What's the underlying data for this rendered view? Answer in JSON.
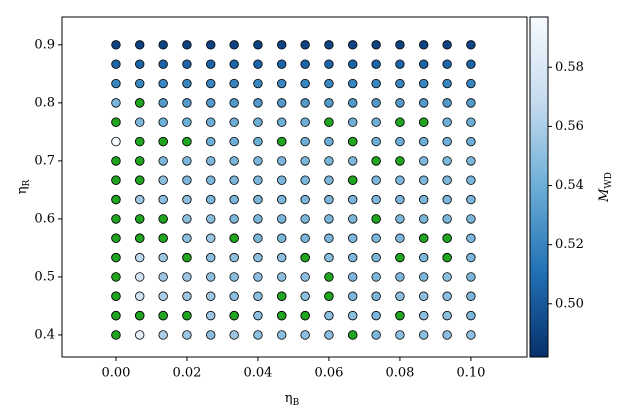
{
  "chart_data": {
    "type": "color-grid-scatter",
    "xlabel": {
      "symbol": "η",
      "sub": "B"
    },
    "ylabel": {
      "symbol": "η",
      "sub": "R"
    },
    "colorbar_label": {
      "symbol": "M",
      "sub": "WD"
    },
    "x": [
      0,
      0.0067,
      0.0133,
      0.02,
      0.0267,
      0.0333,
      0.04,
      0.0467,
      0.0533,
      0.06,
      0.0667,
      0.0733,
      0.08,
      0.0867,
      0.0933,
      0.1
    ],
    "y": [
      0.4,
      0.4333,
      0.4667,
      0.5,
      0.5333,
      0.5667,
      0.6,
      0.6333,
      0.6667,
      0.7,
      0.7333,
      0.7667,
      0.8,
      0.8333,
      0.8667,
      0.9
    ],
    "values": [
      [
        0.555,
        0.585,
        0.56,
        0.555,
        0.55,
        0.555,
        0.55,
        0.55,
        0.55,
        0.55,
        0.55,
        0.545,
        0.55,
        0.55,
        0.55,
        0.55
      ],
      [
        0.55,
        0.555,
        0.56,
        0.555,
        0.555,
        0.55,
        0.55,
        0.555,
        0.55,
        0.55,
        0.55,
        0.545,
        0.55,
        0.55,
        0.55,
        0.545
      ],
      [
        0.555,
        0.575,
        0.56,
        0.555,
        0.555,
        0.55,
        0.55,
        0.55,
        0.55,
        0.55,
        0.545,
        0.545,
        0.55,
        0.55,
        0.55,
        0.545
      ],
      [
        0.555,
        0.575,
        0.555,
        0.555,
        0.55,
        0.55,
        0.55,
        0.55,
        0.55,
        0.55,
        0.545,
        0.545,
        0.545,
        0.545,
        0.55,
        0.545
      ],
      [
        0.55,
        0.565,
        0.555,
        0.55,
        0.55,
        0.55,
        0.55,
        0.55,
        0.545,
        0.55,
        0.545,
        0.545,
        0.545,
        0.545,
        0.545,
        0.545
      ],
      [
        0.55,
        0.56,
        0.55,
        0.55,
        0.555,
        0.55,
        0.545,
        0.545,
        0.545,
        0.545,
        0.545,
        0.545,
        0.545,
        0.545,
        0.545,
        0.545
      ],
      [
        0.55,
        0.56,
        0.55,
        0.55,
        0.55,
        0.545,
        0.545,
        0.545,
        0.545,
        0.545,
        0.545,
        0.545,
        0.545,
        0.545,
        0.545,
        0.545
      ],
      [
        0.555,
        0.555,
        0.55,
        0.55,
        0.545,
        0.545,
        0.545,
        0.545,
        0.545,
        0.545,
        0.545,
        0.545,
        0.545,
        0.545,
        0.545,
        0.545
      ],
      [
        0.555,
        0.55,
        0.55,
        0.545,
        0.545,
        0.545,
        0.545,
        0.545,
        0.545,
        0.545,
        0.545,
        0.545,
        0.545,
        0.545,
        0.545,
        0.545
      ],
      [
        0.55,
        0.555,
        0.545,
        0.545,
        0.545,
        0.545,
        0.545,
        0.545,
        0.545,
        0.545,
        0.545,
        0.545,
        0.545,
        0.545,
        0.545,
        0.545
      ],
      [
        0.597,
        0.55,
        0.545,
        0.545,
        0.54,
        0.54,
        0.54,
        0.54,
        0.54,
        0.54,
        0.54,
        0.54,
        0.54,
        0.54,
        0.54,
        0.54
      ],
      [
        0.55,
        0.545,
        0.54,
        0.54,
        0.54,
        0.54,
        0.54,
        0.54,
        0.54,
        0.54,
        0.54,
        0.54,
        0.54,
        0.54,
        0.54,
        0.54
      ],
      [
        0.545,
        0.55,
        0.53,
        0.53,
        0.53,
        0.53,
        0.53,
        0.53,
        0.53,
        0.53,
        0.53,
        0.53,
        0.53,
        0.53,
        0.53,
        0.53
      ],
      [
        0.52,
        0.52,
        0.52,
        0.52,
        0.52,
        0.52,
        0.52,
        0.52,
        0.52,
        0.52,
        0.52,
        0.52,
        0.52,
        0.52,
        0.52,
        0.52
      ],
      [
        0.505,
        0.505,
        0.505,
        0.505,
        0.505,
        0.505,
        0.505,
        0.505,
        0.505,
        0.505,
        0.505,
        0.505,
        0.505,
        0.505,
        0.505,
        0.505
      ],
      [
        0.49,
        0.49,
        0.49,
        0.49,
        0.49,
        0.49,
        0.49,
        0.49,
        0.49,
        0.49,
        0.49,
        0.49,
        0.49,
        0.49,
        0.49,
        0.49
      ]
    ],
    "colormap": [
      "#08306b",
      "#2171b5",
      "#6baed6",
      "#c6dbef",
      "#f7fbff"
    ],
    "clim": [
      0.482,
      0.597
    ],
    "highlight": {
      "color": "#1fa51f",
      "x": [
        0.0067,
        0,
        0.06,
        0.08,
        0.0867,
        0.0067,
        0.0133,
        0.02,
        0.0467,
        0.0667,
        0,
        0.0067,
        0.0733,
        0.08,
        0,
        0.0067,
        0.0667,
        0,
        0,
        0.0067,
        0.0133,
        0.0733,
        0,
        0.0067,
        0.0133,
        0.0333,
        0.0867,
        0.0933,
        0,
        0.02,
        0.0533,
        0.08,
        0.0933,
        0,
        0.06,
        0,
        0.0467,
        0.06,
        0,
        0.0067,
        0.0133,
        0.02,
        0.0333,
        0.0467,
        0.0533,
        0.08,
        0,
        0.0667
      ],
      "y": [
        0.8,
        0.7667,
        0.7667,
        0.7667,
        0.7667,
        0.7333,
        0.7333,
        0.7333,
        0.7333,
        0.7333,
        0.7,
        0.7,
        0.7,
        0.7,
        0.6667,
        0.6667,
        0.6667,
        0.6333,
        0.6,
        0.6,
        0.6,
        0.6,
        0.5667,
        0.5667,
        0.5667,
        0.5667,
        0.5667,
        0.5667,
        0.5333,
        0.5333,
        0.5333,
        0.5333,
        0.5333,
        0.5,
        0.5,
        0.4667,
        0.4667,
        0.4667,
        0.4333,
        0.4333,
        0.4333,
        0.4333,
        0.4333,
        0.4333,
        0.4333,
        0.4333,
        0.4,
        0.4
      ]
    },
    "xlim": [
      -0.0152,
      0.1158
    ],
    "ylim": [
      0.362,
      0.948
    ],
    "xticks": [
      {
        "value": 0,
        "label": "0.00"
      },
      {
        "value": 0.02,
        "label": "0.02"
      },
      {
        "value": 0.04,
        "label": "0.04"
      },
      {
        "value": 0.06,
        "label": "0.06"
      },
      {
        "value": 0.08,
        "label": "0.08"
      },
      {
        "value": 0.1,
        "label": "0.10"
      }
    ],
    "yticks": [
      0.4,
      0.5,
      0.6,
      0.7,
      0.8,
      0.9
    ],
    "cticks": [
      {
        "value": 0.5,
        "label": "0.50"
      },
      {
        "value": 0.52,
        "label": "0.52"
      },
      {
        "value": 0.54,
        "label": "0.54"
      },
      {
        "value": 0.56,
        "label": "0.56"
      },
      {
        "value": 0.58,
        "label": "0.58"
      }
    ]
  }
}
